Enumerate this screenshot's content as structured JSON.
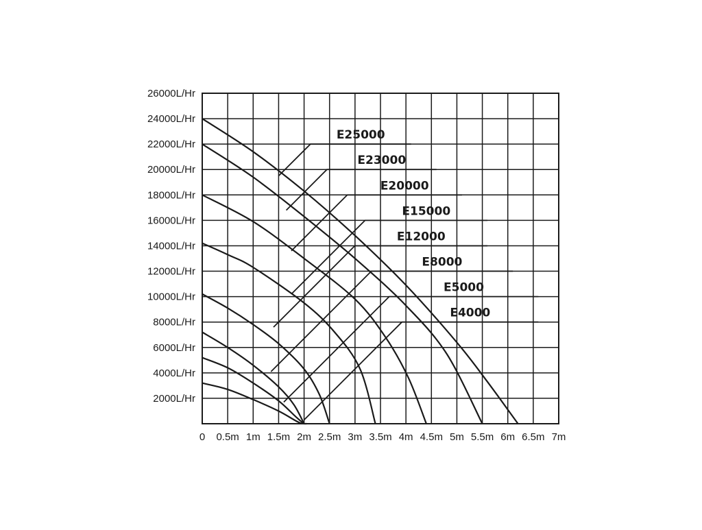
{
  "chart_data": {
    "type": "line",
    "title": "",
    "xlabel": "",
    "ylabel": "",
    "xlim": [
      0,
      7
    ],
    "ylim": [
      0,
      26000
    ],
    "grid": true,
    "x_ticks": [
      0,
      0.5,
      1,
      1.5,
      2,
      2.5,
      3,
      3.5,
      4,
      4.5,
      5,
      5.5,
      6,
      6.5,
      7
    ],
    "x_tick_labels": [
      "0",
      "0.5m",
      "1m",
      "1.5m",
      "2m",
      "2.5m",
      "3m",
      "3.5m",
      "4m",
      "4.5m",
      "5m",
      "5.5m",
      "6m",
      "6.5m",
      "7m"
    ],
    "y_ticks": [
      2000,
      4000,
      6000,
      8000,
      10000,
      12000,
      14000,
      16000,
      18000,
      20000,
      22000,
      24000,
      26000
    ],
    "y_tick_labels": [
      "2000L/Hr",
      "4000L/Hr",
      "6000L/Hr",
      "8000L/Hr",
      "10000L/Hr",
      "12000L/Hr",
      "14000L/Hr",
      "16000L/Hr",
      "18000L/Hr",
      "20000L/Hr",
      "22000L/Hr",
      "24000L/Hr",
      "26000L/Hr"
    ],
    "series": [
      {
        "name": "E25000",
        "values": [
          [
            0,
            24000
          ],
          [
            1,
            21400
          ],
          [
            2,
            18300
          ],
          [
            3,
            14800
          ],
          [
            4,
            10900
          ],
          [
            5,
            6400
          ],
          [
            5.6,
            3300
          ],
          [
            6.2,
            0
          ]
        ],
        "label_anchor": [
          1.5,
          19500
        ],
        "label_line_end": [
          4.1,
          22000
        ]
      },
      {
        "name": "E23000",
        "values": [
          [
            0,
            22000
          ],
          [
            1,
            19400
          ],
          [
            2,
            16300
          ],
          [
            3,
            13000
          ],
          [
            4,
            9300
          ],
          [
            4.8,
            5500
          ],
          [
            5.5,
            0
          ]
        ],
        "label_anchor": [
          1.65,
          16800
        ],
        "label_line_end": [
          4.6,
          20000
        ]
      },
      {
        "name": "E20000",
        "values": [
          [
            0,
            18000
          ],
          [
            1,
            15900
          ],
          [
            2,
            13000
          ],
          [
            3,
            9800
          ],
          [
            3.6,
            6800
          ],
          [
            4.05,
            3600
          ],
          [
            4.4,
            0
          ]
        ],
        "label_anchor": [
          1.75,
          13600
        ],
        "label_line_end": [
          5.1,
          18000
        ]
      },
      {
        "name": "E15000",
        "values": [
          [
            0,
            14200
          ],
          [
            0.5,
            13300
          ],
          [
            1,
            12300
          ],
          [
            2,
            9500
          ],
          [
            2.6,
            7200
          ],
          [
            3.1,
            4300
          ],
          [
            3.4,
            0
          ]
        ],
        "label_anchor": [
          1.75,
          10200
        ],
        "label_line_end": [
          5.6,
          16000
        ]
      },
      {
        "name": "E12000",
        "values": [
          [
            0,
            10200
          ],
          [
            0.5,
            9100
          ],
          [
            1,
            7800
          ],
          [
            1.5,
            6300
          ],
          [
            2,
            4300
          ],
          [
            2.3,
            2300
          ],
          [
            2.5,
            0
          ]
        ],
        "label_anchor": [
          1.4,
          7600
        ],
        "label_line_end": [
          5.6,
          14000
        ]
      },
      {
        "name": "E8000",
        "values": [
          [
            0,
            7200
          ],
          [
            0.5,
            6000
          ],
          [
            1,
            4600
          ],
          [
            1.5,
            2900
          ],
          [
            1.8,
            1500
          ],
          [
            2,
            0
          ]
        ],
        "label_anchor": [
          1.35,
          4100
        ],
        "label_line_end": [
          6.1,
          12000
        ]
      },
      {
        "name": "E5000",
        "values": [
          [
            0,
            5200
          ],
          [
            0.5,
            4400
          ],
          [
            1,
            3200
          ],
          [
            1.5,
            1800
          ],
          [
            1.85,
            500
          ],
          [
            2,
            0
          ]
        ],
        "label_anchor": [
          1.6,
          1700
        ],
        "label_line_end": [
          6.6,
          10000
        ]
      },
      {
        "name": "E4000",
        "values": [
          [
            0,
            3200
          ],
          [
            0.5,
            2700
          ],
          [
            1,
            1900
          ],
          [
            1.5,
            1000
          ],
          [
            1.9,
            100
          ],
          [
            2.05,
            0
          ]
        ],
        "label_anchor": [
          2,
          300
        ],
        "label_line_end": [
          6.6,
          8000
        ]
      }
    ]
  }
}
